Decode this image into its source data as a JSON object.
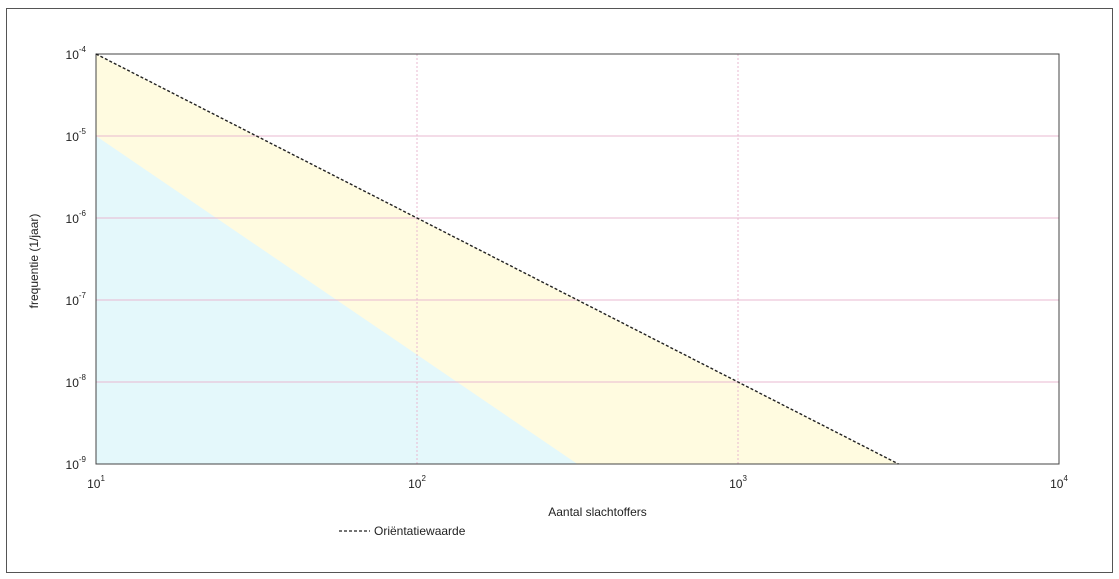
{
  "chart_data": {
    "type": "line",
    "xlabel": "Aantal slachtoffers",
    "ylabel": "frequentie (1/jaar)",
    "x_scale": "log",
    "y_scale": "log",
    "xlim": [
      10,
      10000
    ],
    "ylim": [
      1e-09,
      0.0001
    ],
    "x_ticks": [
      {
        "value": 10,
        "base": "10",
        "exp": "1"
      },
      {
        "value": 100,
        "base": "10",
        "exp": "2"
      },
      {
        "value": 1000,
        "base": "10",
        "exp": "3"
      },
      {
        "value": 10000,
        "base": "10",
        "exp": "4"
      }
    ],
    "y_ticks": [
      {
        "value": 0.0001,
        "base": "10",
        "exp": "-4"
      },
      {
        "value": 1e-05,
        "base": "10",
        "exp": "-5"
      },
      {
        "value": 1e-06,
        "base": "10",
        "exp": "-6"
      },
      {
        "value": 1e-07,
        "base": "10",
        "exp": "-7"
      },
      {
        "value": 1e-08,
        "base": "10",
        "exp": "-8"
      },
      {
        "value": 1e-09,
        "base": "10",
        "exp": "-9"
      }
    ],
    "grid": true,
    "series": [
      {
        "name": "Oriëntatiewaarde",
        "style": "dashed",
        "color": "#222222",
        "x": [
          10,
          100,
          1000,
          3162
        ],
        "y": [
          0.0001,
          1e-06,
          1e-08,
          1e-09
        ]
      }
    ],
    "regions": [
      {
        "color": "#fffbe0",
        "x": [
          10,
          10,
          3162
        ],
        "y": [
          0.0001,
          1e-09,
          1e-09
        ]
      },
      {
        "color": "#e4f8fb",
        "x": [
          10,
          10,
          316
        ],
        "y": [
          1e-05,
          1e-09,
          1e-09
        ]
      }
    ],
    "legend_position": "bottom-left"
  }
}
